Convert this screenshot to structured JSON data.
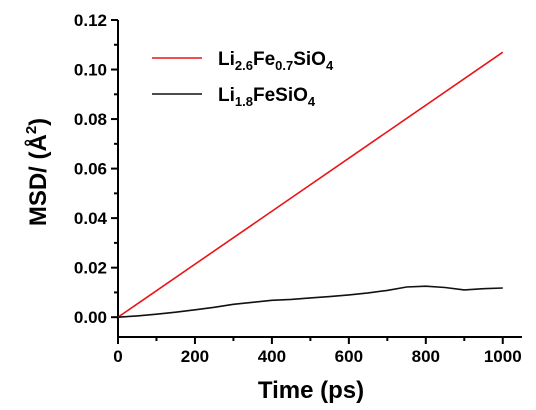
{
  "chart_data": {
    "type": "line",
    "xlabel": "Time (ps)",
    "ylabel_text": "MSD/ (Å",
    "ylabel_sup": "2",
    "ylabel_close": ")",
    "xlim": [
      0,
      1050
    ],
    "ylim": [
      -0.008,
      0.12
    ],
    "x_ticks": [
      "0",
      "200",
      "400",
      "600",
      "800",
      "1000"
    ],
    "y_ticks": [
      "0.00",
      "0.02",
      "0.04",
      "0.06",
      "0.08",
      "0.10",
      "0.12"
    ],
    "grid": false,
    "legend_position": "top-left",
    "series": [
      {
        "name_parts": [
          {
            "t": "Li",
            "sub": false
          },
          {
            "t": "2.6",
            "sub": true
          },
          {
            "t": "Fe",
            "sub": false
          },
          {
            "t": "0.7",
            "sub": true
          },
          {
            "t": "SiO",
            "sub": false
          },
          {
            "t": "4",
            "sub": true
          }
        ],
        "color": "#e8151a",
        "x": [
          0,
          1000
        ],
        "y": [
          0,
          0.107
        ]
      },
      {
        "name_parts": [
          {
            "t": "Li",
            "sub": false
          },
          {
            "t": "1.8",
            "sub": true
          },
          {
            "t": "FeSiO",
            "sub": false
          },
          {
            "t": "4",
            "sub": true
          }
        ],
        "color": "#111111",
        "x": [
          0,
          50,
          100,
          150,
          200,
          250,
          300,
          350,
          400,
          450,
          500,
          550,
          600,
          650,
          700,
          750,
          800,
          850,
          900,
          950,
          1000
        ],
        "y": [
          0.0,
          0.0005,
          0.0012,
          0.002,
          0.003,
          0.004,
          0.0052,
          0.006,
          0.0068,
          0.0072,
          0.0078,
          0.0083,
          0.009,
          0.0098,
          0.0108,
          0.0122,
          0.0125,
          0.012,
          0.011,
          0.0115,
          0.0118
        ]
      }
    ]
  }
}
